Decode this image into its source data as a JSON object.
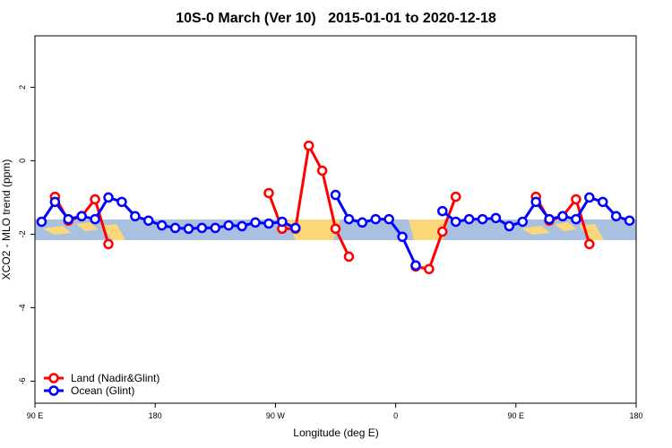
{
  "chart_data": {
    "type": "line",
    "title": "10S-0 March (Ver 10)   2015-01-01 to 2020-12-18",
    "xlabel": "Longitude (deg E)",
    "ylabel": "XCO2 - MLO trend (ppm)",
    "xlim": [
      90,
      540
    ],
    "xticks": [
      {
        "value": 90,
        "label": "90 E"
      },
      180,
      {
        "value": 270,
        "label": "90 W"
      },
      {
        "value": 360,
        "label": "0"
      },
      {
        "value": 450,
        "label": "90 E"
      },
      {
        "value": 540,
        "label": "180"
      }
    ],
    "ylim": [
      -6.6,
      3.4
    ],
    "yticks": [
      -6,
      -4,
      -2,
      0,
      2
    ],
    "grid": false,
    "legend": "bottomleft",
    "series": [
      {
        "name": "Land (Nadir&Glint)",
        "color": "#ff0000",
        "x": [
          105,
          115,
          125,
          135,
          145,
          null,
          265,
          275,
          285,
          295,
          305,
          315,
          325,
          null,
          375,
          385,
          395,
          405,
          null,
          465,
          475,
          485,
          495,
          505
        ],
        "values": [
          -0.98,
          -1.63,
          -1.51,
          -1.05,
          -2.27,
          null,
          -0.88,
          -1.85,
          -1.85,
          0.41,
          -0.27,
          -1.85,
          -2.61,
          null,
          -2.88,
          -2.95,
          -1.93,
          -0.98,
          null,
          -0.98,
          -1.63,
          -1.51,
          -1.05,
          -2.27
        ]
      },
      {
        "name": "Ocean (Glint)",
        "color": "#0000ff",
        "x": [
          95,
          105,
          115,
          125,
          135,
          145,
          155,
          165,
          175,
          185,
          195,
          205,
          215,
          225,
          235,
          245,
          255,
          265,
          275,
          285,
          null,
          315,
          325,
          335,
          345,
          355,
          365,
          375,
          null,
          395,
          405,
          415,
          425,
          435,
          445,
          455,
          465,
          475,
          485,
          495,
          505,
          515,
          525,
          535
        ],
        "values": [
          -1.66,
          -1.12,
          -1.59,
          -1.51,
          -1.59,
          -1.0,
          -1.12,
          -1.51,
          -1.63,
          -1.76,
          -1.83,
          -1.85,
          -1.83,
          -1.83,
          -1.76,
          -1.78,
          -1.68,
          -1.71,
          -1.66,
          -1.83,
          null,
          -0.93,
          -1.59,
          -1.68,
          -1.59,
          -1.59,
          -2.07,
          -2.85,
          null,
          -1.37,
          -1.66,
          -1.59,
          -1.59,
          -1.56,
          -1.78,
          -1.66,
          -1.12,
          -1.59,
          -1.51,
          -1.59,
          -1.0,
          -1.12,
          -1.51,
          -1.63
        ]
      }
    ]
  }
}
